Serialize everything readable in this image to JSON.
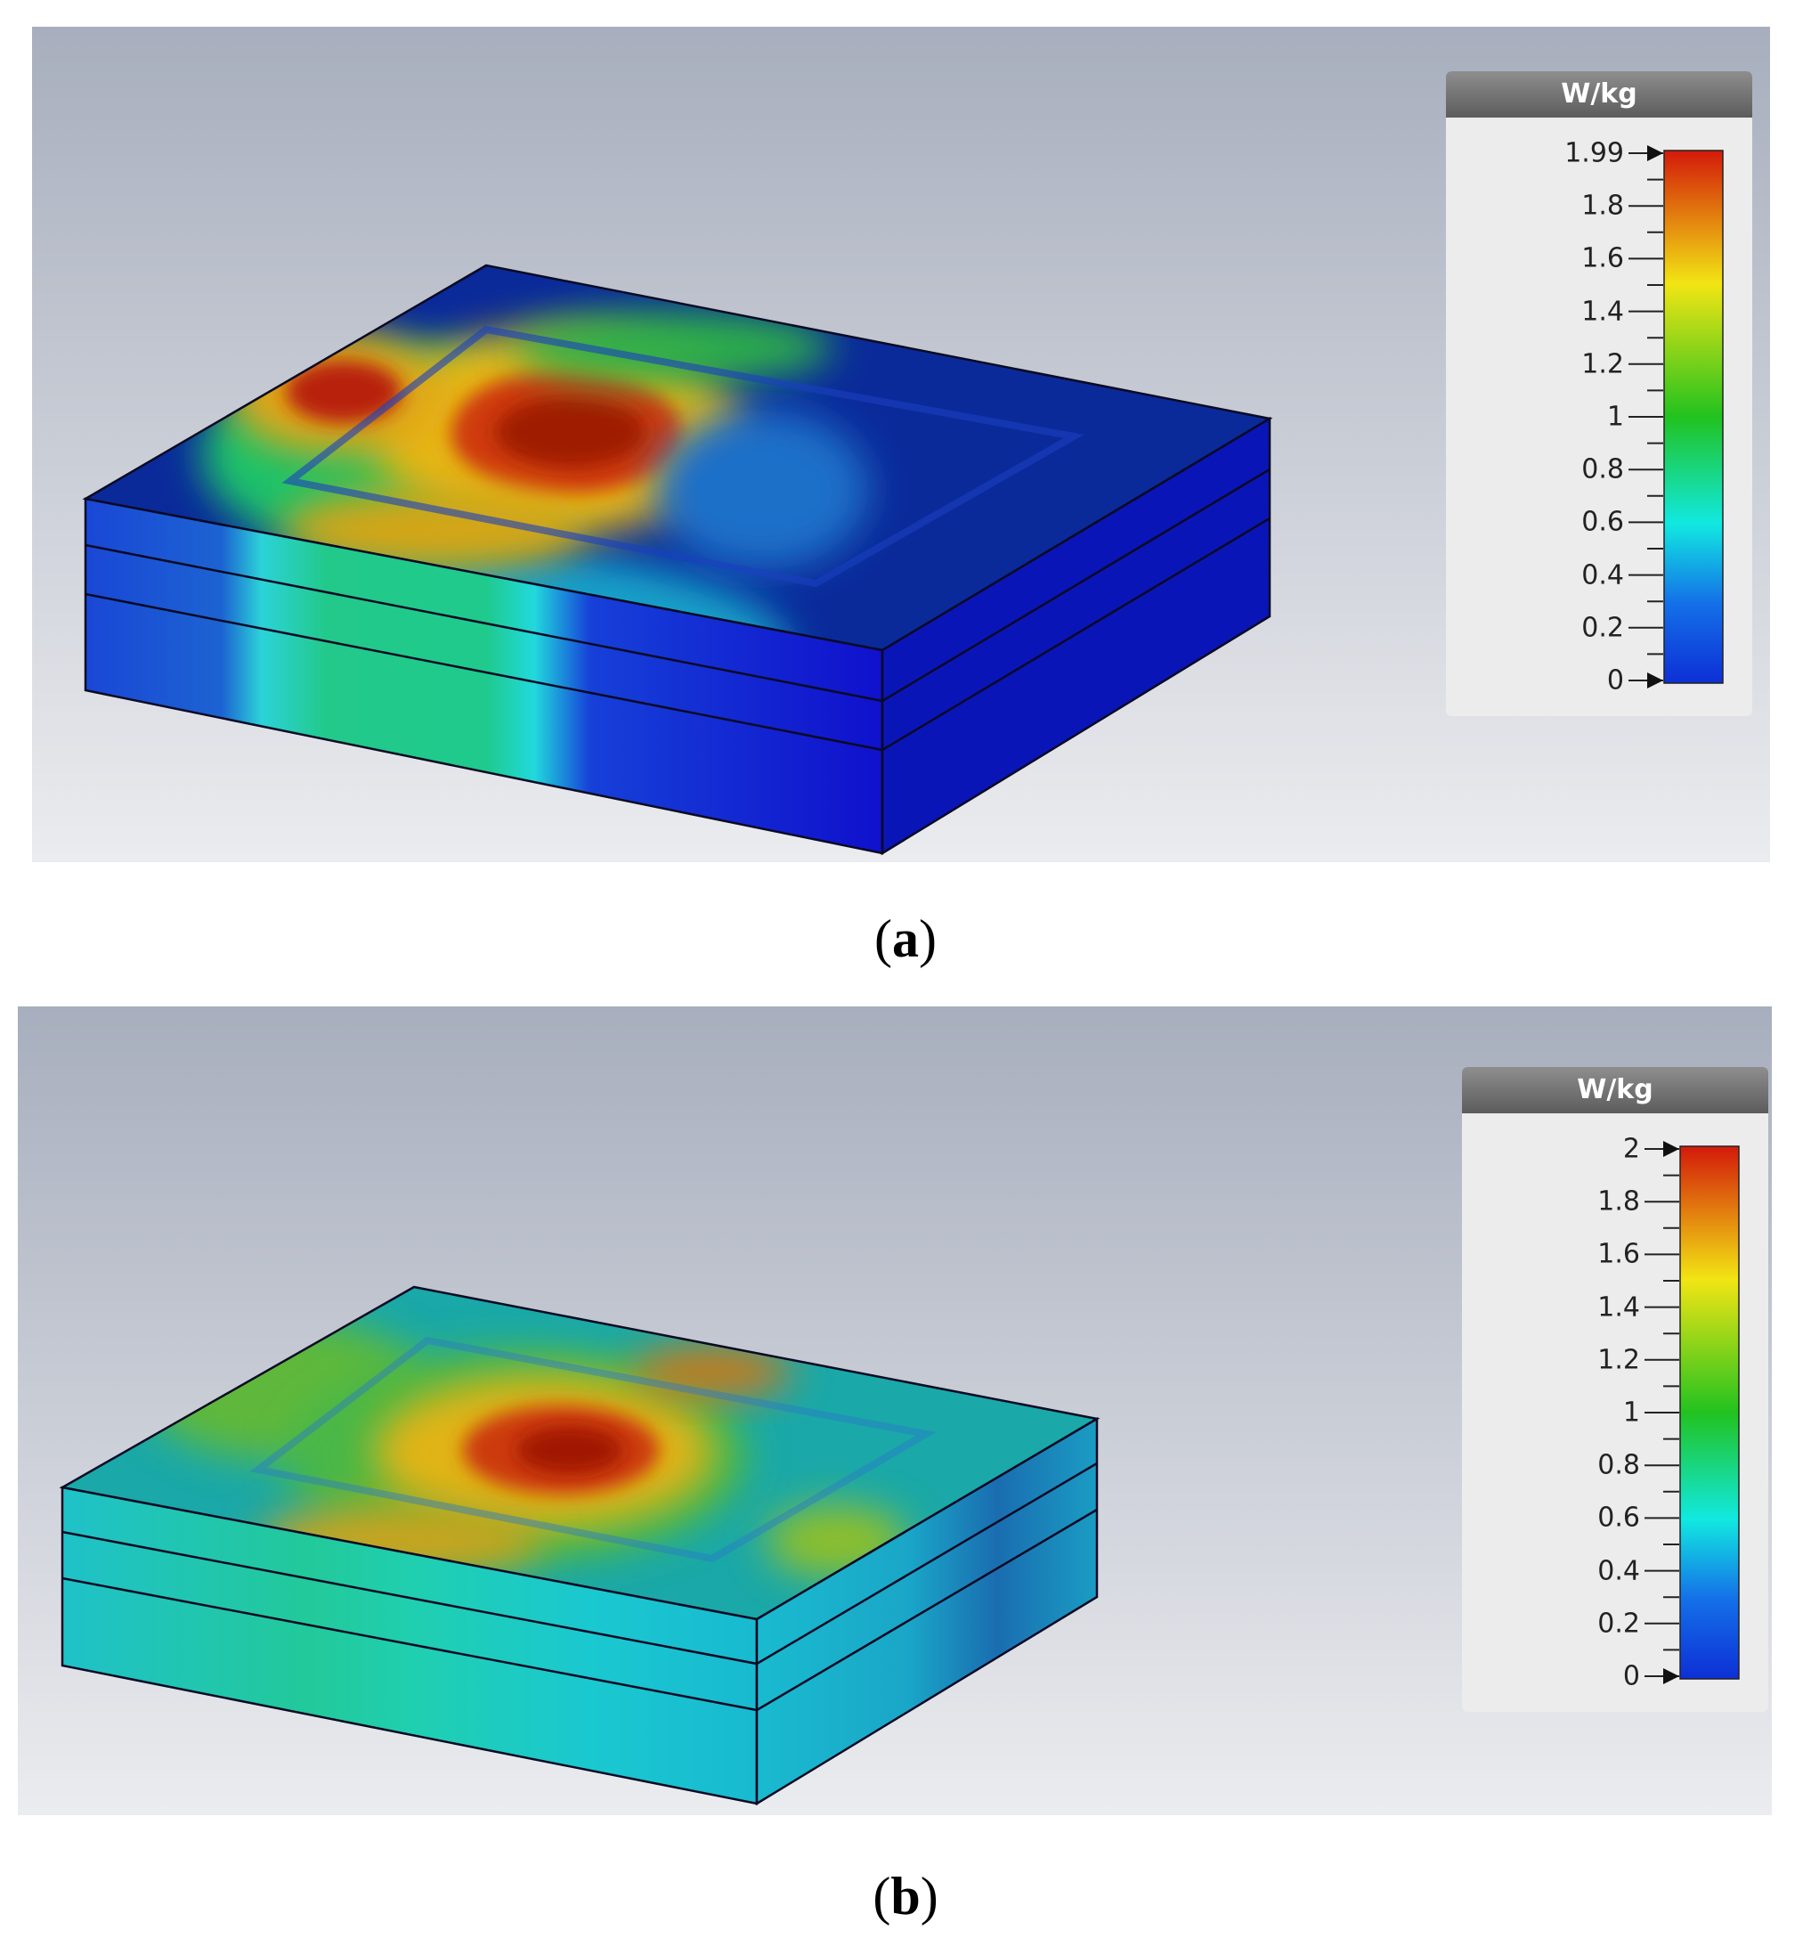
{
  "panel_a": {
    "caption_letter": "a",
    "legend": {
      "unit": "W/kg",
      "max": 1.99,
      "ticks": [
        "1.99",
        "1.8",
        "1.6",
        "1.4",
        "1.2",
        "1",
        "0.8",
        "0.6",
        "0.4",
        "0.2",
        "0"
      ]
    }
  },
  "panel_b": {
    "caption_letter": "b",
    "legend": {
      "unit": "W/kg",
      "max": 2,
      "ticks": [
        "2",
        "1.8",
        "1.6",
        "1.4",
        "1.2",
        "1",
        "0.8",
        "0.6",
        "0.4",
        "0.2",
        "0"
      ]
    }
  },
  "colors": {
    "background_top": "#a7aebd",
    "background_bottom": "#e9eaee",
    "scale_red": "#d31a0a",
    "scale_yellow": "#f2e514",
    "scale_green": "#22c21f",
    "scale_cyan": "#11e9e0",
    "scale_blue": "#0d2fd6"
  }
}
